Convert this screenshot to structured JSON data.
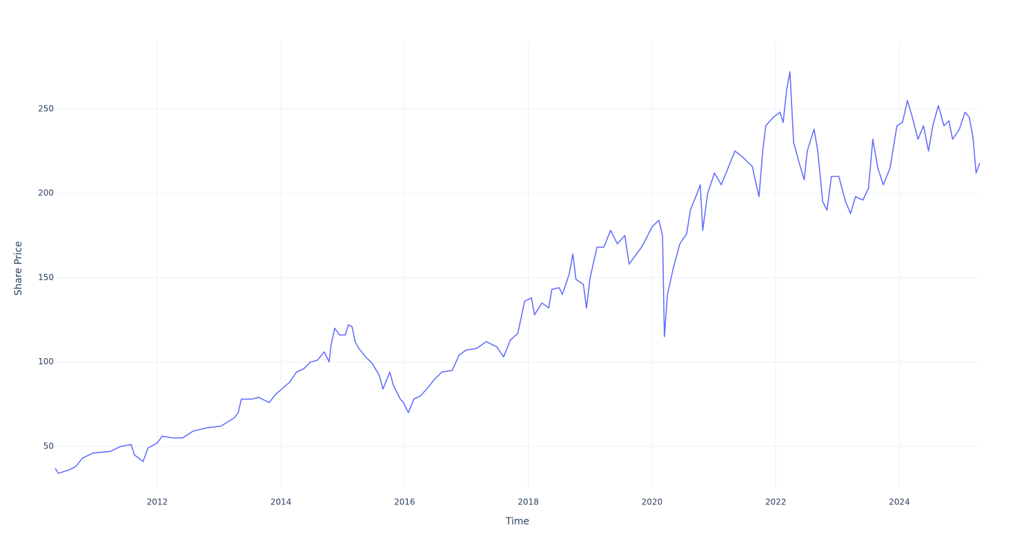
{
  "chart_data": {
    "type": "line",
    "x_label": "Time",
    "y_label": "Share Price",
    "color": "#636efa",
    "grid": true,
    "xlim": [
      2010.35,
      2025.3
    ],
    "xticks": [
      2012,
      2014,
      2016,
      2018,
      2020,
      2022,
      2024
    ],
    "ylim": [
      25,
      290
    ],
    "yticks": [
      50,
      100,
      150,
      200,
      250
    ],
    "x": [
      2010.35,
      2010.4,
      2010.57,
      2010.68,
      2010.79,
      2010.96,
      2011.24,
      2011.41,
      2011.58,
      2011.63,
      2011.77,
      2011.85,
      2012.0,
      2012.08,
      2012.25,
      2012.41,
      2012.58,
      2012.8,
      2013.03,
      2013.25,
      2013.31,
      2013.36,
      2013.53,
      2013.64,
      2013.81,
      2013.92,
      2014.14,
      2014.25,
      2014.37,
      2014.48,
      2014.59,
      2014.7,
      2014.78,
      2014.81,
      2014.87,
      2014.95,
      2015.04,
      2015.09,
      2015.15,
      2015.2,
      2015.26,
      2015.37,
      2015.48,
      2015.59,
      2015.65,
      2015.76,
      2015.82,
      2015.93,
      2015.98,
      2016.06,
      2016.15,
      2016.26,
      2016.38,
      2016.49,
      2016.6,
      2016.77,
      2016.88,
      2016.99,
      2017.16,
      2017.32,
      2017.49,
      2017.6,
      2017.71,
      2017.83,
      2017.94,
      2018.05,
      2018.1,
      2018.22,
      2018.33,
      2018.38,
      2018.5,
      2018.55,
      2018.66,
      2018.72,
      2018.77,
      2018.89,
      2018.94,
      2019.0,
      2019.11,
      2019.22,
      2019.33,
      2019.44,
      2019.56,
      2019.63,
      2019.75,
      2019.83,
      2019.89,
      2020.0,
      2020.11,
      2020.17,
      2020.2,
      2020.25,
      2020.34,
      2020.45,
      2020.56,
      2020.62,
      2020.73,
      2020.78,
      2020.82,
      2020.9,
      2021.01,
      2021.12,
      2021.23,
      2021.34,
      2021.45,
      2021.56,
      2021.62,
      2021.73,
      2021.79,
      2021.84,
      2021.96,
      2022.07,
      2022.12,
      2022.18,
      2022.23,
      2022.29,
      2022.38,
      2022.46,
      2022.51,
      2022.62,
      2022.68,
      2022.76,
      2022.83,
      2022.9,
      2023.02,
      2023.13,
      2023.21,
      2023.29,
      2023.41,
      2023.5,
      2023.57,
      2023.65,
      2023.74,
      2023.85,
      2023.96,
      2024.05,
      2024.13,
      2024.21,
      2024.3,
      2024.39,
      2024.47,
      2024.54,
      2024.63,
      2024.72,
      2024.8,
      2024.86,
      2024.97,
      2025.06,
      2025.13,
      2025.19,
      2025.24,
      2025.3
    ],
    "values": [
      37,
      34,
      36,
      38,
      43,
      46,
      47,
      50,
      51,
      45,
      41,
      49,
      52,
      56,
      55,
      55,
      59,
      61,
      62,
      67,
      70,
      78,
      78,
      79,
      76,
      81,
      88,
      94,
      96,
      100,
      101,
      106,
      100,
      110,
      120,
      116,
      116,
      122,
      121,
      112,
      108,
      103,
      99,
      92,
      84,
      94,
      86,
      78,
      76,
      70,
      78,
      80,
      85,
      90,
      94,
      95,
      104,
      107,
      108,
      112,
      109,
      103,
      113,
      117,
      136,
      138,
      128,
      135,
      132,
      143,
      144,
      140,
      152,
      164,
      149,
      146,
      132,
      150,
      168,
      168,
      178,
      170,
      175,
      158,
      164,
      168,
      172,
      180,
      184,
      175,
      115,
      140,
      155,
      170,
      176,
      190,
      200,
      205,
      178,
      200,
      212,
      205,
      215,
      225,
      222,
      218,
      216,
      198,
      225,
      240,
      245,
      248,
      242,
      262,
      272,
      230,
      218,
      208,
      225,
      238,
      225,
      195,
      190,
      210,
      210,
      195,
      188,
      198,
      196,
      203,
      232,
      215,
      205,
      215,
      240,
      242,
      255,
      245,
      232,
      240,
      225,
      240,
      252,
      240,
      243,
      232,
      238,
      248,
      245,
      233,
      212,
      218
    ]
  }
}
